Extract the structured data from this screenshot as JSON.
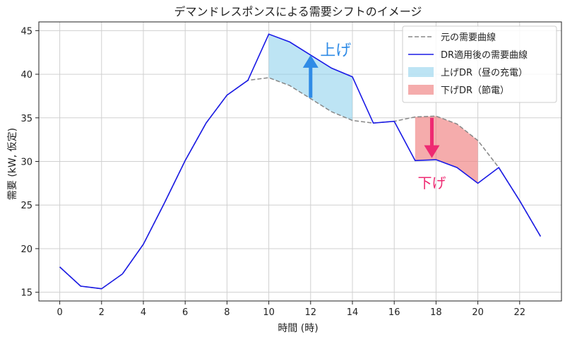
{
  "chart_data": {
    "type": "line",
    "title": "デマンドレスポンスによる需要シフトのイメージ",
    "xlabel": "時間 (時)",
    "ylabel": "需要 (kW, 仮定)",
    "x": [
      0,
      1,
      2,
      3,
      4,
      5,
      6,
      7,
      8,
      9,
      10,
      11,
      12,
      13,
      14,
      15,
      16,
      17,
      18,
      19,
      20,
      21,
      22,
      23
    ],
    "xticks": [
      0,
      2,
      4,
      6,
      8,
      10,
      12,
      14,
      16,
      18,
      20,
      22
    ],
    "xlim": [
      -1,
      24
    ],
    "yticks": [
      15,
      20,
      25,
      30,
      35,
      40,
      45
    ],
    "ylim": [
      14,
      46
    ],
    "grid": true,
    "legend_position": "top-right",
    "series": [
      {
        "name": "元の需要曲線",
        "style": "dashed",
        "color": "#888888",
        "values": [
          17.9,
          15.7,
          15.4,
          17.1,
          20.5,
          25.2,
          30.1,
          34.4,
          37.6,
          39.3,
          39.6,
          38.7,
          37.2,
          35.7,
          34.7,
          34.4,
          34.6,
          35.1,
          35.2,
          34.3,
          32.4,
          29.3,
          25.5,
          21.4
        ]
      },
      {
        "name": "DR適用後の需要曲線",
        "style": "solid",
        "color": "#1a1ae6",
        "values": [
          17.9,
          15.7,
          15.4,
          17.1,
          20.5,
          25.2,
          30.1,
          34.4,
          37.6,
          39.3,
          44.6,
          43.7,
          42.2,
          40.7,
          39.7,
          34.4,
          34.6,
          30.1,
          30.2,
          29.3,
          27.5,
          29.3,
          25.5,
          21.4
        ]
      }
    ],
    "fills": [
      {
        "name": "上げDR（昼の充電）",
        "color": "#87ceeb",
        "opacity": 0.55,
        "x_from": 10,
        "x_to": 14
      },
      {
        "name": "下げDR（節電）",
        "color": "#f08080",
        "opacity": 0.65,
        "x_from": 17,
        "x_to": 20
      }
    ],
    "annotations": [
      {
        "text": "上げ",
        "x": 13.2,
        "y": 42.8,
        "arrow_from": [
          12,
          37.3
        ],
        "arrow_to": [
          12,
          42.2
        ],
        "color": "#2f8be6"
      },
      {
        "text": "下げ",
        "x": 17.8,
        "y": 27.6,
        "arrow_from": [
          17.8,
          35.0
        ],
        "arrow_to": [
          17.8,
          30.4
        ],
        "color": "#ee2a72"
      }
    ]
  }
}
